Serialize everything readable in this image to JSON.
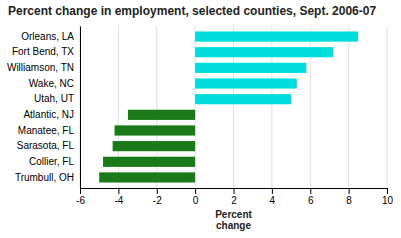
{
  "chart_data": {
    "type": "bar",
    "orientation": "horizontal",
    "title": "Percent change in employment, selected counties, Sept. 2006-07",
    "categories": [
      "Trumbull, OH",
      "Collier, FL",
      "Sarasota, FL",
      "Manatee, FL",
      "Atlantic, NJ",
      "Utah, UT",
      "Wake, NC",
      "Williamson, TN",
      "Fort Bend, TX",
      "Orleans, LA"
    ],
    "values": [
      -5.0,
      -4.8,
      -4.3,
      -4.2,
      -3.5,
      5.0,
      5.3,
      5.8,
      7.2,
      8.5
    ],
    "colors": [
      "#1a7a1a",
      "#1a7a1a",
      "#1a7a1a",
      "#1a7a1a",
      "#1a7a1a",
      "#00dddd",
      "#00dddd",
      "#00dddd",
      "#00dddd",
      "#00dddd"
    ],
    "xlim": [
      -6,
      10
    ],
    "xticks": [
      -6,
      -4,
      -2,
      0,
      2,
      4,
      6,
      8,
      10
    ],
    "xlabel": "Percent\nchange",
    "grid": true
  }
}
